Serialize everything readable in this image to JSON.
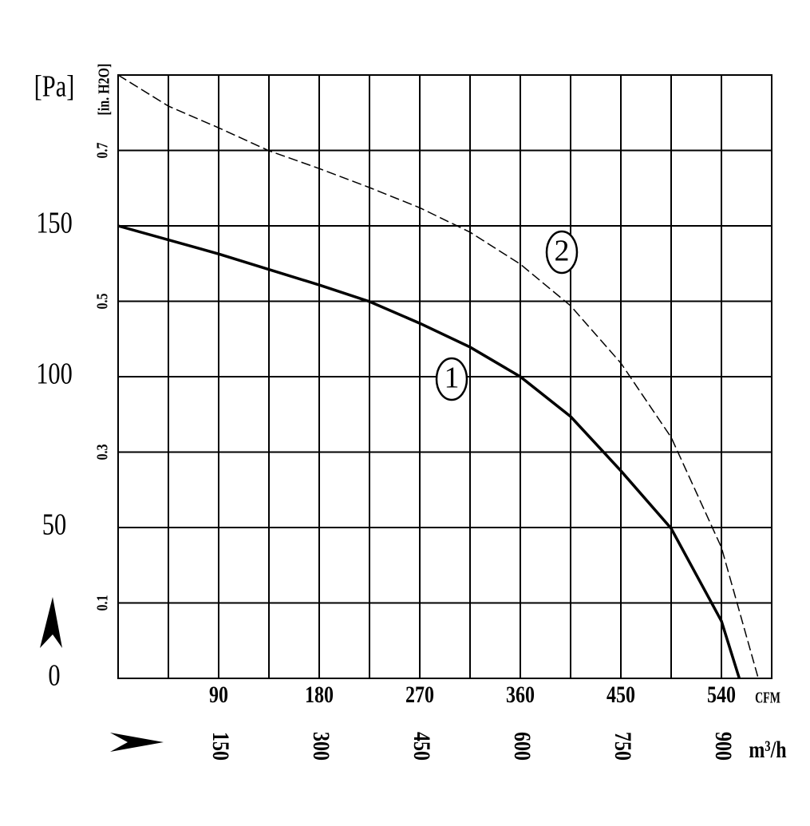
{
  "chart_data": {
    "type": "line",
    "y_label": "[Pa]",
    "y2_label": "[in. H2O]",
    "x_label": "CFM",
    "x2_label": "m³/h",
    "xlim": [
      0,
      585
    ],
    "xticks": [
      90,
      180,
      270,
      360,
      450,
      540
    ],
    "x2lim": [
      0,
      975
    ],
    "x2ticks": [
      150,
      300,
      450,
      600,
      750,
      900
    ],
    "ylim": [
      0,
      200
    ],
    "yticks": [
      0,
      50,
      100,
      150
    ],
    "y2lim": [
      0,
      0.8
    ],
    "y2ticks": [
      0.1,
      0.3,
      0.5,
      0.7
    ],
    "grid": true,
    "series": [
      {
        "name": "1",
        "color": "#000000",
        "dash": false,
        "x": [
          0,
          90,
          180,
          225,
          270,
          315,
          360,
          405,
          450,
          495,
          540,
          556
        ],
        "values": [
          150,
          140.7,
          130.4,
          124.9,
          117.7,
          109.8,
          100,
          86.8,
          68.8,
          49.7,
          19,
          0
        ]
      },
      {
        "name": "2",
        "color": "#000000",
        "dash": true,
        "x": [
          0,
          45,
          90,
          135,
          180,
          225,
          270,
          315,
          360,
          405,
          450,
          495,
          540,
          573
        ],
        "values": [
          200,
          189.7,
          182.5,
          174.9,
          169,
          162.7,
          156,
          147.9,
          137.3,
          123.5,
          104.5,
          79.9,
          43.4,
          0
        ]
      }
    ]
  }
}
